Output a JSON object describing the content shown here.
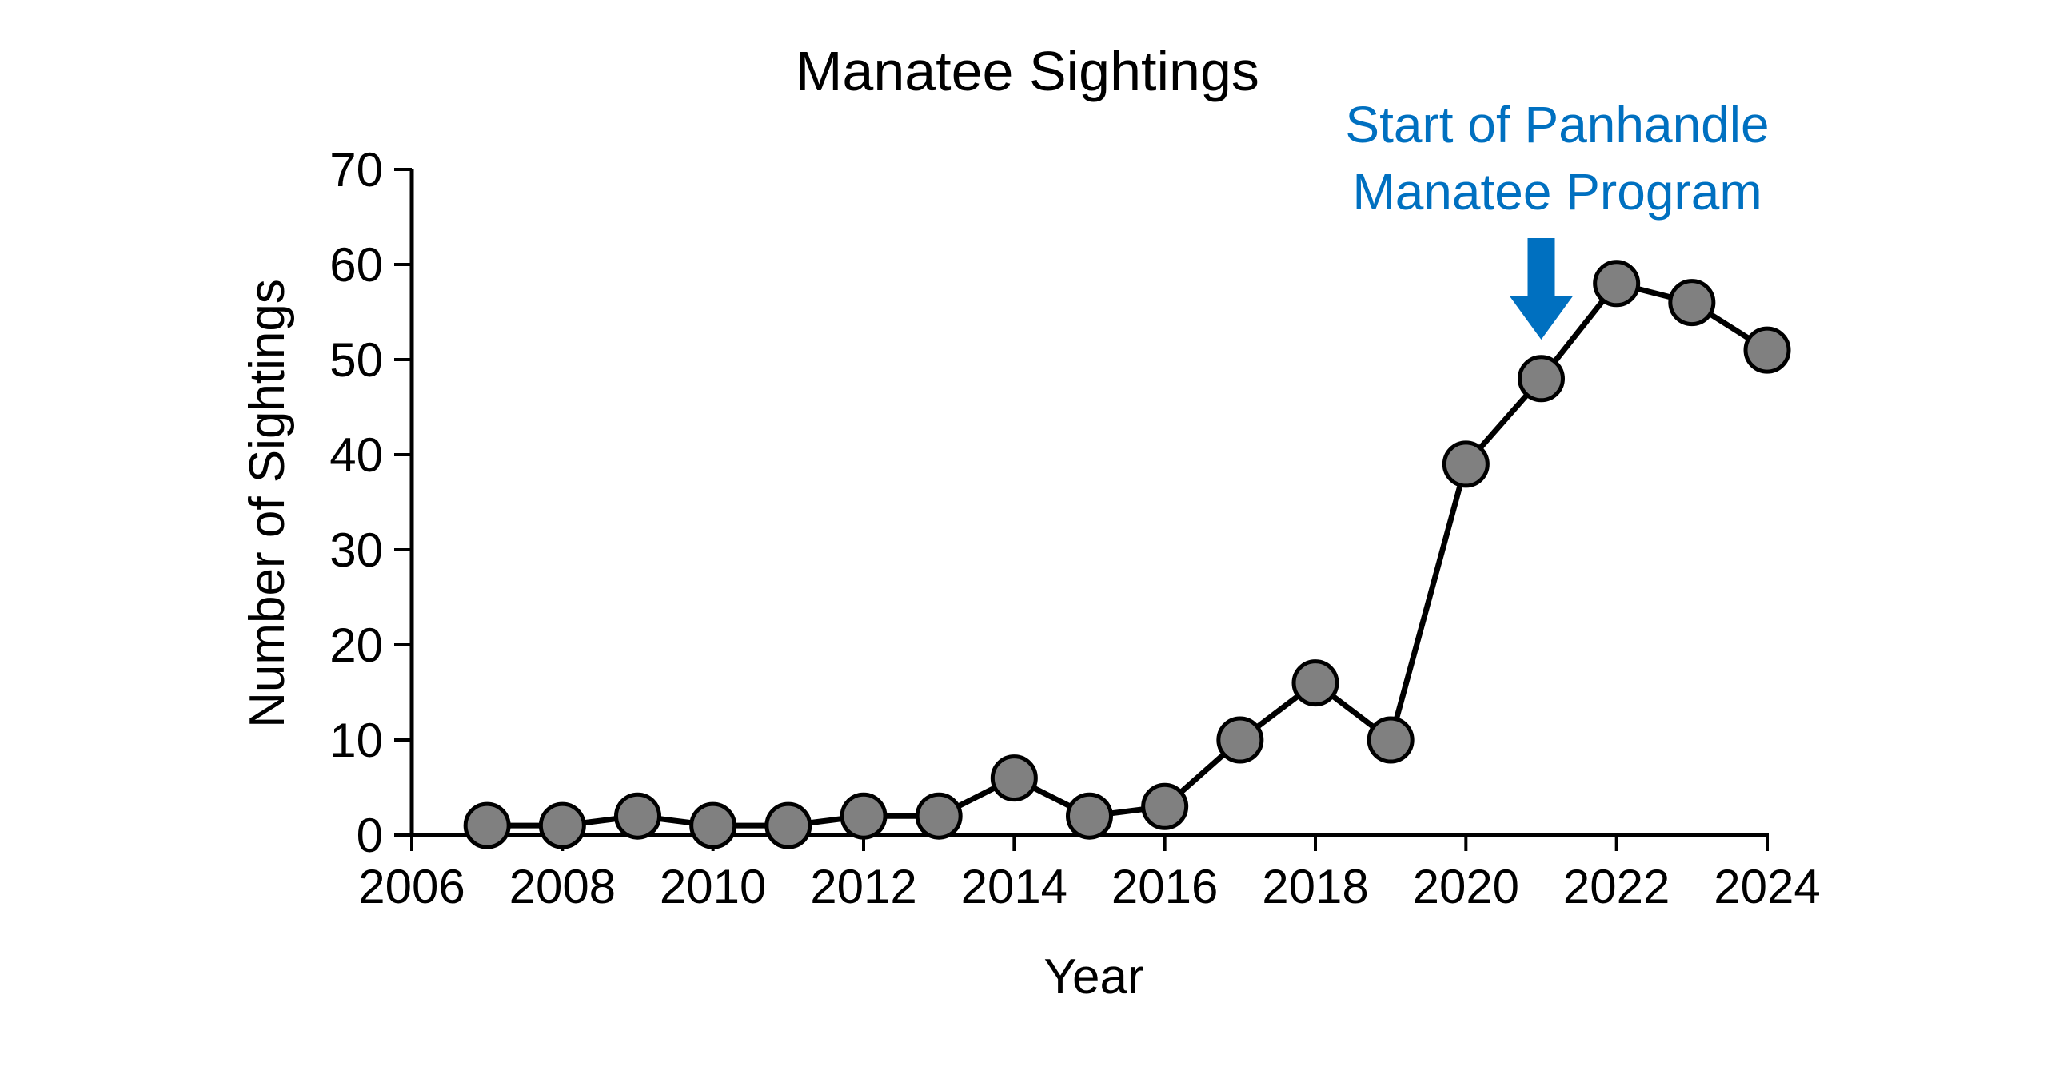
{
  "chart_data": {
    "type": "line",
    "title": "Manatee Sightings",
    "xlabel": "Year",
    "ylabel": "Number of Sightings",
    "xlim": [
      2006,
      2024
    ],
    "ylim": [
      0,
      70
    ],
    "xticks": [
      2006,
      2008,
      2010,
      2012,
      2014,
      2016,
      2018,
      2020,
      2022,
      2024
    ],
    "yticks": [
      0,
      10,
      20,
      30,
      40,
      50,
      60,
      70
    ],
    "grid": false,
    "legend": "none",
    "series": [
      {
        "x": [
          2007,
          2008,
          2009,
          2010,
          2011,
          2012,
          2013,
          2014,
          2015,
          2016,
          2017,
          2018,
          2019,
          2020,
          2021,
          2022,
          2023,
          2024
        ],
        "y": [
          1,
          1,
          2,
          1,
          1,
          2,
          2,
          6,
          2,
          3,
          10,
          16,
          10,
          39,
          48,
          58,
          56,
          51
        ],
        "line_color": "#000000",
        "marker_fill": "#808080",
        "marker_edge": "#000000"
      }
    ],
    "annotations": [
      {
        "text_lines": [
          "Start of Panhandle",
          "Manatee Program"
        ],
        "x": 2021,
        "y": 48,
        "arrow": "down",
        "color": "#0070C0"
      }
    ]
  }
}
